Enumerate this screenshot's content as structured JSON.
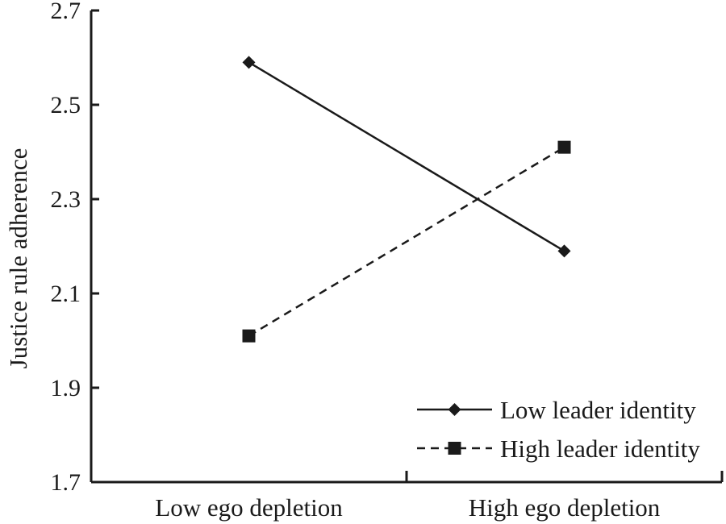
{
  "chart_data": {
    "type": "line",
    "title": "",
    "xlabel": "",
    "ylabel": "Justice rule adherence",
    "categories": [
      "Low ego depletion",
      "High ego depletion"
    ],
    "series": [
      {
        "name": "Low leader identity",
        "values": [
          2.59,
          2.19
        ],
        "line_style": "solid",
        "marker": "diamond",
        "color": "#1a1a1a"
      },
      {
        "name": "High leader identity",
        "values": [
          2.01,
          2.41
        ],
        "line_style": "dashed",
        "marker": "square",
        "color": "#1a1a1a"
      }
    ],
    "ylim": [
      1.7,
      2.7
    ],
    "ytick_values": [
      1.7,
      1.9,
      2.1,
      2.3,
      2.5,
      2.7
    ],
    "ytick_labels": [
      "1.7",
      "1.9",
      "2.1",
      "2.3",
      "2.5",
      "2.7"
    ],
    "grid": false,
    "legend_position": "bottom-right",
    "axis_color": "#1a1a1a",
    "background": "#ffffff"
  }
}
